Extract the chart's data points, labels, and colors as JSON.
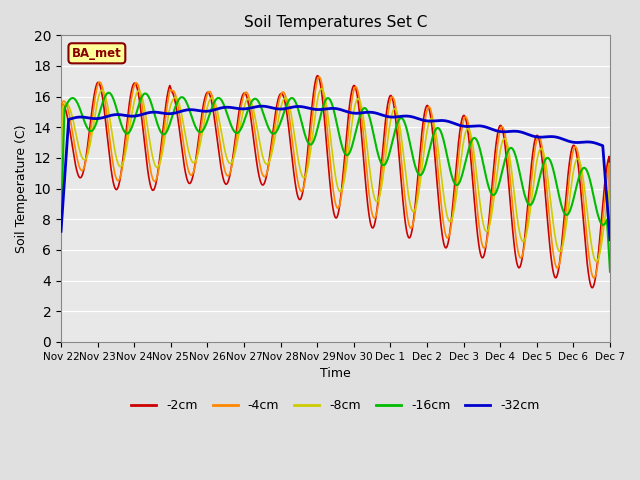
{
  "title": "Soil Temperatures Set C",
  "xlabel": "Time",
  "ylabel": "Soil Temperature (C)",
  "background_color": "#e0e0e0",
  "plot_bg_color": "#e8e8e8",
  "ylim": [
    0,
    20
  ],
  "yticks": [
    0,
    2,
    4,
    6,
    8,
    10,
    12,
    14,
    16,
    18,
    20
  ],
  "xtick_labels": [
    "Nov 22",
    "Nov 23",
    "Nov 24",
    "Nov 25",
    "Nov 26",
    "Nov 27",
    "Nov 28",
    "Nov 29",
    "Nov 30",
    "Dec 1",
    "Dec 2",
    "Dec 3",
    "Dec 4",
    "Dec 5",
    "Dec 6",
    "Dec 7"
  ],
  "legend_labels": [
    "-2cm",
    "-4cm",
    "-8cm",
    "-16cm",
    "-32cm"
  ],
  "line_colors": [
    "#cc0000",
    "#ff8800",
    "#cccc00",
    "#00bb00",
    "#0000cc"
  ],
  "line_widths": [
    1.2,
    1.2,
    1.2,
    1.5,
    2.0
  ],
  "annotation_text": "BA_met",
  "annotation_color": "#880000",
  "annotation_bg": "#ffff99"
}
